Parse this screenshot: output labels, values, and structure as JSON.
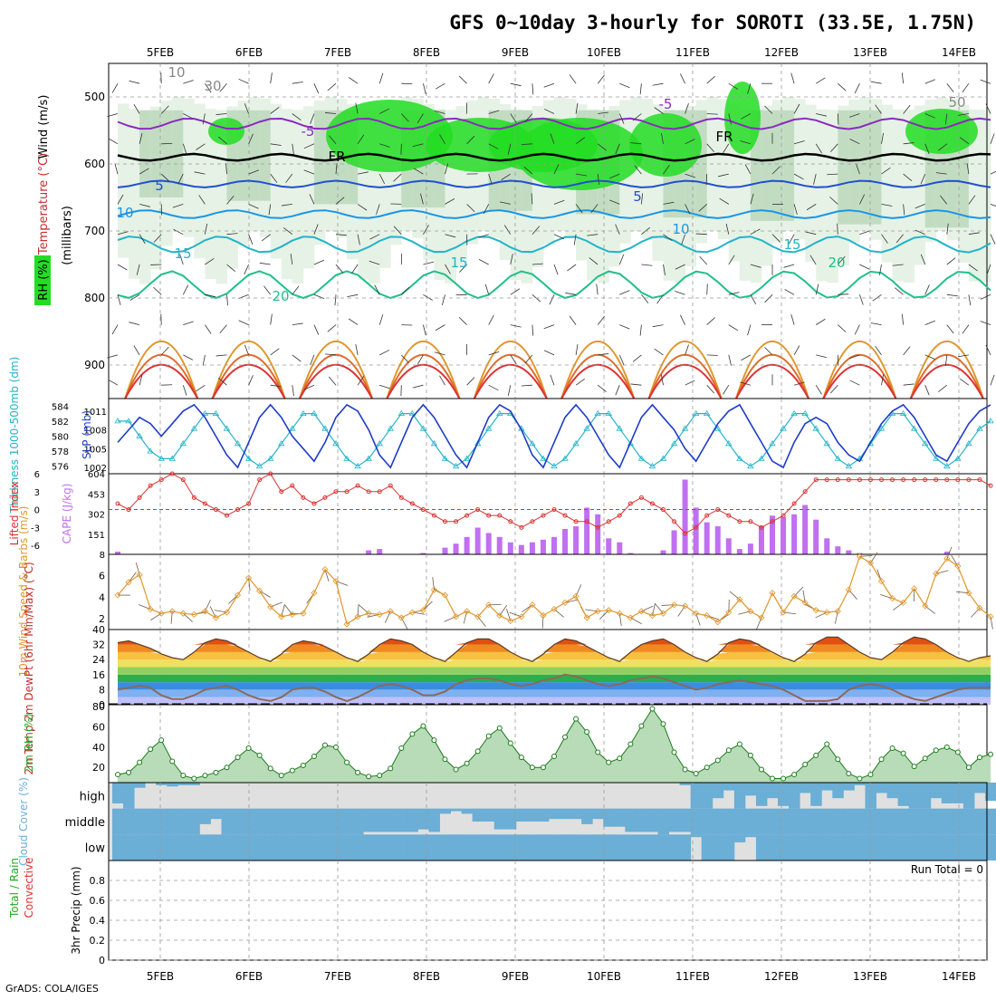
{
  "title": "GFS 0~10day 3-hourly for SOROTI (33.5E, 1.75N)",
  "footer": "GrADS: COLA/IGES",
  "run_total": "Run Total = 0",
  "date_labels": [
    "5FEB",
    "6FEB",
    "7FEB",
    "8FEB",
    "9FEB",
    "10FEB",
    "11FEB",
    "12FEB",
    "13FEB",
    "14FEB"
  ],
  "colors": {
    "rh_light": "#e6f2e6",
    "rh_mid": "#c2dcc2",
    "rh_dark": "#9ab89a",
    "rh_green": "#22dd22",
    "slp": "#1e3cc8",
    "thickness": "#22b4c8",
    "lifted_index": "#dc3232",
    "cape": "#c070f0",
    "wind": "#e0962a",
    "barb": "#6e5a4a",
    "cloud": "#6baed6",
    "cloud_bg": "#e0e0e0",
    "rh2m": "#22aa22",
    "dew": "#8a6a5a"
  },
  "chart_data": [
    {
      "type": "heatmap",
      "name": "cross-section",
      "ylabel_parts": [
        "Wind (m/s)",
        "Temperature (°C)",
        "RH (%)"
      ],
      "ylabel2": "(millibars)",
      "y_ticks": [
        500,
        600,
        700,
        800,
        900
      ],
      "ylim": [
        450,
        950
      ],
      "contour_labels": [
        "10",
        "30",
        "-5",
        "-5",
        "FR",
        "FR",
        "5",
        "5",
        "10",
        "10",
        "15",
        "15",
        "15",
        "20",
        "20",
        "50"
      ]
    },
    {
      "type": "line",
      "name": "SLP / Thickness",
      "ylabel_left": "Thickness 1000-500mb (dm)",
      "ylabel_right": "SLP (mb)",
      "left_ticks": [
        576,
        578,
        580,
        582,
        584
      ],
      "right_ticks": [
        1002,
        1005,
        1008,
        1011
      ],
      "series": [
        {
          "name": "SLP (mb)",
          "ylim": [
            1001,
            1013
          ],
          "values": [
            1006,
            1008,
            1010,
            1009,
            1007,
            1009,
            1011,
            1012,
            1010,
            1007,
            1004,
            1002,
            1006,
            1010,
            1012,
            1010,
            1007,
            1005,
            1003,
            1006,
            1010,
            1012,
            1011,
            1008,
            1004,
            1002,
            1006,
            1010,
            1012,
            1010,
            1007,
            1004,
            1002,
            1006,
            1010,
            1012,
            1011,
            1008,
            1004,
            1002,
            1006,
            1010,
            1012,
            1010,
            1007,
            1004,
            1002,
            1006,
            1010,
            1012,
            1010,
            1008,
            1005,
            1003,
            1006,
            1009,
            1011,
            1012,
            1009,
            1006,
            1003,
            1002,
            1006,
            1009,
            1010,
            1009,
            1006,
            1004,
            1003,
            1006,
            1009,
            1011,
            1012,
            1010,
            1007,
            1004,
            1003,
            1006,
            1009,
            1011,
            1012
          ]
        },
        {
          "name": "Thickness 1000-500mb (dm)",
          "ylim": [
            575,
            585
          ],
          "values": [
            582,
            582,
            580,
            578,
            577,
            577,
            579,
            581,
            583,
            583,
            581,
            579,
            577,
            576,
            577,
            579,
            581,
            583,
            583,
            581,
            579,
            577,
            576,
            577,
            579,
            581,
            583,
            583,
            581,
            579,
            577,
            576,
            577,
            579,
            581,
            583,
            583,
            581,
            579,
            577,
            576,
            577,
            579,
            581,
            583,
            583,
            581,
            579,
            577,
            576,
            577,
            579,
            581,
            583,
            583,
            581,
            579,
            577,
            576,
            577,
            579,
            581,
            583,
            583,
            581,
            579,
            577,
            576,
            577,
            579,
            581,
            583,
            583,
            581,
            579,
            577,
            576,
            577,
            579,
            581,
            582
          ]
        }
      ]
    },
    {
      "type": "bar",
      "name": "Lifted Index / CAPE",
      "ylabel_left": "Lifted Index",
      "ylabel_right": "CAPE (J/kg)",
      "li_ticks": [
        -6,
        -3,
        0,
        3,
        6
      ],
      "cape_ticks": [
        0,
        151,
        302,
        453,
        604
      ],
      "cape_label_first": "8",
      "series": [
        {
          "name": "Lifted Index",
          "ylim": [
            -7.5,
            6
          ],
          "values": [
            1,
            0,
            2,
            4,
            5,
            6,
            5,
            2,
            1,
            0,
            -1,
            0,
            1,
            5,
            6,
            3,
            4,
            2,
            1,
            2,
            3,
            3,
            4,
            3,
            3,
            4,
            2,
            1,
            0,
            -1,
            -2,
            -2,
            -1,
            0,
            -1,
            -1,
            -2,
            -3,
            -2,
            -1,
            0,
            -1,
            -2,
            -2,
            -3,
            -2,
            -1,
            1,
            2,
            1,
            0,
            -2,
            -4,
            -3,
            -1,
            0,
            -1,
            -2,
            -2,
            -3,
            -2,
            -1,
            1,
            3,
            5,
            5,
            5,
            5,
            5,
            5,
            5,
            5,
            5,
            5,
            5,
            5,
            5,
            5,
            5,
            5,
            4
          ]
        },
        {
          "name": "CAPE (J/kg)",
          "ylim": [
            0,
            604
          ],
          "values": [
            20,
            0,
            0,
            0,
            0,
            0,
            0,
            0,
            0,
            0,
            0,
            0,
            0,
            0,
            0,
            0,
            0,
            0,
            0,
            0,
            0,
            0,
            0,
            30,
            40,
            0,
            0,
            0,
            10,
            0,
            50,
            80,
            130,
            200,
            160,
            130,
            90,
            70,
            90,
            110,
            130,
            190,
            210,
            350,
            300,
            120,
            90,
            10,
            0,
            0,
            30,
            180,
            560,
            350,
            240,
            210,
            120,
            40,
            80,
            210,
            290,
            280,
            300,
            370,
            260,
            120,
            60,
            30,
            10,
            0,
            0,
            0,
            0,
            0,
            0,
            0,
            20,
            0,
            0,
            0,
            0
          ]
        }
      ]
    },
    {
      "type": "line",
      "name": "10m Wind",
      "ylabel": "10m Wind Speed & Barbs (m/s)",
      "y_ticks": [
        2,
        4,
        6
      ],
      "ylim": [
        1,
        8
      ],
      "values": [
        4.2,
        5.4,
        6.1,
        2.9,
        2.5,
        2.7,
        2.5,
        2.4,
        2.7,
        2.1,
        2.6,
        4.2,
        5.8,
        4.6,
        3.1,
        2.2,
        2.4,
        2.5,
        4.4,
        6.6,
        5.5,
        1.5,
        2.2,
        2.5,
        2.4,
        2.7,
        2.1,
        2.6,
        2.8,
        4.7,
        4.2,
        2.2,
        2.7,
        2.2,
        3.3,
        2.3,
        1.8,
        2.2,
        3.3,
        2.3,
        2.9,
        3.5,
        4.1,
        2.1,
        2.7,
        2.8,
        2.5,
        2.1,
        2.7,
        2.3,
        2.5,
        3.3,
        3.2,
        2.5,
        2.3,
        1.7,
        2.6,
        3.8,
        2.7,
        2.1,
        4.4,
        2.6,
        4.1,
        3.5,
        2.8,
        2.6,
        2.7,
        4.7,
        7.8,
        7.2,
        5.5,
        3.9,
        3.5,
        4.8,
        3.2,
        6.2,
        7.6,
        6.9,
        4.4,
        3.0,
        2.2
      ]
    },
    {
      "type": "area",
      "name": "2m Temp / DewPt",
      "ylabel": "2m Temp 2m DewPt (6hr Min/Max) (°C)",
      "y_ticks": [
        0,
        8,
        16,
        24,
        32,
        40
      ],
      "ylim": [
        0,
        40
      ],
      "series": [
        {
          "name": "2m Temp",
          "values": [
            33,
            34,
            32,
            30,
            27,
            25,
            24,
            28,
            33,
            35,
            34,
            31,
            28,
            25,
            23,
            27,
            32,
            34,
            33,
            31,
            28,
            25,
            23,
            27,
            32,
            35,
            34,
            32,
            28,
            25,
            23,
            28,
            33,
            35,
            35,
            32,
            28,
            25,
            23,
            27,
            32,
            35,
            34,
            31,
            28,
            25,
            23,
            28,
            32,
            34,
            35,
            32,
            28,
            25,
            23,
            27,
            33,
            35,
            34,
            31,
            28,
            25,
            23,
            27,
            33,
            36,
            36,
            32,
            28,
            25,
            24,
            28,
            33,
            36,
            35,
            32,
            28,
            25,
            23,
            25,
            26
          ]
        },
        {
          "name": "2m DewPt",
          "values": [
            8,
            9,
            10,
            9,
            5,
            3,
            3,
            5,
            8,
            9,
            10,
            8,
            5,
            3,
            2,
            4,
            8,
            9,
            9,
            7,
            4,
            2,
            4,
            7,
            10,
            11,
            10,
            8,
            5,
            5,
            7,
            11,
            13,
            14,
            14,
            13,
            11,
            10,
            11,
            13,
            14,
            16,
            15,
            13,
            11,
            10,
            11,
            13,
            14,
            15,
            14,
            12,
            10,
            8,
            9,
            11,
            12,
            13,
            12,
            11,
            10,
            8,
            5,
            2,
            2,
            2,
            3,
            8,
            10,
            11,
            10,
            8,
            5,
            3,
            2,
            4,
            6,
            8,
            9,
            9,
            9
          ]
        }
      ]
    },
    {
      "type": "area",
      "name": "2m RH",
      "ylabel": "2m RH (%)",
      "y_ticks": [
        20,
        40,
        60,
        80
      ],
      "ylim": [
        5,
        82
      ],
      "values": [
        13,
        15,
        25,
        38,
        47,
        26,
        12,
        9,
        12,
        15,
        20,
        30,
        39,
        32,
        19,
        12,
        17,
        22,
        31,
        42,
        40,
        25,
        15,
        11,
        12,
        19,
        39,
        53,
        61,
        47,
        28,
        18,
        24,
        36,
        51,
        59,
        44,
        30,
        20,
        20,
        31,
        50,
        68,
        55,
        35,
        25,
        29,
        43,
        61,
        78,
        63,
        35,
        18,
        14,
        20,
        27,
        37,
        43,
        32,
        18,
        9,
        9,
        13,
        23,
        32,
        43,
        28,
        14,
        9,
        13,
        28,
        39,
        34,
        21,
        29,
        37,
        40,
        35,
        20,
        30,
        33
      ]
    },
    {
      "type": "bar",
      "name": "Cloud Cover",
      "ylabel": "Cloud Cover (%)",
      "levels": [
        "high",
        "middle",
        "low"
      ],
      "series": [
        {
          "name": "high",
          "values": [
            80,
            100,
            20,
            0,
            10,
            15,
            10,
            10,
            0,
            0,
            0,
            0,
            0,
            0,
            0,
            0,
            0,
            0,
            0,
            0,
            0,
            0,
            0,
            0,
            0,
            0,
            0,
            0,
            0,
            0,
            0,
            0,
            0,
            0,
            0,
            0,
            0,
            0,
            0,
            0,
            0,
            0,
            0,
            0,
            0,
            0,
            0,
            0,
            0,
            0,
            0,
            0,
            10,
            100,
            100,
            60,
            30,
            100,
            50,
            90,
            60,
            90,
            100,
            40,
            90,
            30,
            60,
            30,
            10,
            100,
            40,
            60,
            90,
            100,
            100,
            60,
            80,
            80,
            100,
            40,
            70
          ]
        },
        {
          "name": "middle",
          "values": [
            100,
            100,
            100,
            100,
            100,
            100,
            100,
            100,
            60,
            40,
            100,
            100,
            100,
            100,
            100,
            100,
            100,
            100,
            100,
            100,
            100,
            100,
            100,
            90,
            90,
            90,
            90,
            90,
            80,
            90,
            20,
            10,
            20,
            50,
            50,
            80,
            80,
            50,
            50,
            50,
            40,
            40,
            40,
            60,
            40,
            70,
            70,
            90,
            90,
            90,
            100,
            90,
            90,
            100,
            100,
            100,
            100,
            100,
            100,
            100,
            100,
            100,
            100,
            100,
            100,
            100,
            100,
            100,
            100,
            100,
            100,
            100,
            100,
            100,
            100,
            100,
            100,
            100,
            100,
            100,
            100
          ]
        },
        {
          "name": "low",
          "values": [
            100,
            100,
            100,
            100,
            100,
            100,
            100,
            100,
            100,
            100,
            100,
            100,
            100,
            100,
            100,
            100,
            100,
            100,
            100,
            100,
            100,
            100,
            100,
            100,
            100,
            100,
            100,
            100,
            100,
            100,
            100,
            100,
            100,
            100,
            100,
            100,
            100,
            100,
            100,
            100,
            100,
            100,
            100,
            100,
            100,
            100,
            100,
            100,
            100,
            100,
            100,
            100,
            100,
            10,
            100,
            100,
            100,
            30,
            10,
            100,
            100,
            100,
            100,
            100,
            100,
            100,
            100,
            100,
            100,
            100,
            100,
            100,
            100,
            100,
            100,
            100,
            100,
            100,
            100,
            100,
            100
          ]
        }
      ]
    },
    {
      "type": "bar",
      "name": "3hr Precip",
      "ylabel_parts": [
        "Total / Rain",
        "Convective",
        "3hr Precip (mm)"
      ],
      "y_ticks": [
        0,
        0.2,
        0.4,
        0.6,
        0.8
      ],
      "ylim": [
        0,
        1.0
      ],
      "values": []
    }
  ]
}
